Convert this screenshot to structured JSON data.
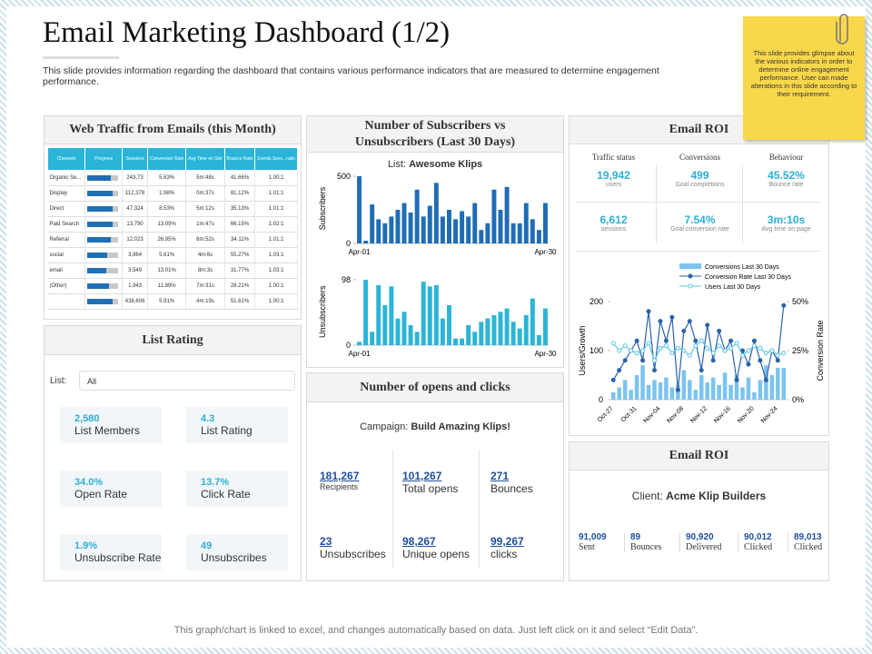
{
  "header": {
    "title": "Email Marketing Dashboard (1/2)",
    "description": "This slide provides information regarding the dashboard that contains various performance indicators that are measured to determine engagement performance."
  },
  "note": "This slide provides glimpse about the various indicators in order to determine online engagement performance. User can made alterations in this slide according to their requirement.",
  "footer": "This graph/chart is linked to excel, and changes automatically based on data. Just left click on it and select “Edit Data”.",
  "web_traffic": {
    "title": "Web Traffic from Emails (this Month)",
    "columns": [
      "Channels",
      "Progress",
      "Sessions",
      "Conversion Rate",
      "Avg Time on Site",
      "Bounce Rate",
      "Events Sess...ratio"
    ],
    "rows": [
      {
        "channel": "Organic Se...",
        "progress": 75,
        "sessions": "243,73",
        "conversion_rate": "5.63%",
        "avg_time": "5m:48s",
        "bounce_rate": "41.66%",
        "events_ratio": "1.00:1"
      },
      {
        "channel": "Display",
        "progress": 80,
        "sessions": "112,378",
        "conversion_rate": "1.98%",
        "avg_time": "0m:37s",
        "bounce_rate": "81.12%",
        "events_ratio": "1.01:1"
      },
      {
        "channel": "Direct",
        "progress": 80,
        "sessions": "47,324",
        "conversion_rate": "8.53%",
        "avg_time": "5m:12s",
        "bounce_rate": "35.13%",
        "events_ratio": "1.01:1"
      },
      {
        "channel": "Paid Search",
        "progress": 80,
        "sessions": "13,790",
        "conversion_rate": "13.09%",
        "avg_time": "1m:47s",
        "bounce_rate": "66.15%",
        "events_ratio": "1.02:1"
      },
      {
        "channel": "Referral",
        "progress": 75,
        "sessions": "12,023",
        "conversion_rate": "26.95%",
        "avg_time": "6m:52s",
        "bounce_rate": "34.11%",
        "events_ratio": "1.01:1"
      },
      {
        "channel": "social",
        "progress": 65,
        "sessions": "3,864",
        "conversion_rate": "5.61%",
        "avg_time": "4m:6s",
        "bounce_rate": "55.27%",
        "events_ratio": "1.03:1"
      },
      {
        "channel": "email",
        "progress": 60,
        "sessions": "3,549",
        "conversion_rate": "13.01%",
        "avg_time": "8m:3s",
        "bounce_rate": "31.77%",
        "events_ratio": "1.03:1"
      },
      {
        "channel": "(Other)",
        "progress": 70,
        "sessions": "1,943",
        "conversion_rate": "11.89%",
        "avg_time": "7m:31s",
        "bounce_rate": "28.21%",
        "events_ratio": "1.00:1"
      },
      {
        "progress": 80,
        "sessions": "438,606",
        "conversion_rate": "5.91%",
        "avg_time": "4m:19s",
        "bounce_rate": "51.61%",
        "events_ratio": "1.00:1"
      }
    ]
  },
  "list_rating": {
    "title": "List Rating",
    "list_label": "List:",
    "list_value": "All",
    "stats": [
      {
        "value": "2,580",
        "label": "List Members"
      },
      {
        "value": "4.3",
        "label": "List Rating"
      },
      {
        "value": "34.0%",
        "label": "Open Rate"
      },
      {
        "value": "13.7%",
        "label": "Click Rate"
      },
      {
        "value": "1.9%",
        "label": "Unsubscribe Rate"
      },
      {
        "value": "49",
        "label": "Unsubscribes"
      }
    ]
  },
  "subscribers": {
    "title": "Number of Subscribers vs Unsubscribers (Last 30 Days)",
    "list_label": "List:",
    "list_name": "Awesome Klips"
  },
  "opens_clicks": {
    "title": "Number of opens and clicks",
    "campaign_label": "Campaign:",
    "campaign": "Build Amazing Klips!",
    "metrics": [
      {
        "value": "181,267",
        "label": "Recipients"
      },
      {
        "value": "101,267",
        "label": "Total opens"
      },
      {
        "value": "271",
        "label": "Bounces"
      },
      {
        "value": "23",
        "label": "Unsubscribes"
      },
      {
        "value": "98,267",
        "label": "Unique opens"
      },
      {
        "value": "99,267",
        "label": "clicks"
      }
    ]
  },
  "email_roi_top": {
    "title": "Email ROI",
    "columns": [
      "Traffic status",
      "Conversions",
      "Behaviour"
    ],
    "metrics": [
      {
        "value": "19,942",
        "label": "users"
      },
      {
        "value": "499",
        "label": "Goal completions"
      },
      {
        "value": "45.52%",
        "label": "Bounce rate"
      },
      {
        "value": "6,612",
        "label": "sessions"
      },
      {
        "value": "7.54%",
        "label": "Goal conversion rate"
      },
      {
        "value": "3m:10s",
        "label": "Avg time on page"
      }
    ]
  },
  "email_roi_bottom": {
    "title": "Email ROI",
    "client_label": "Client:",
    "client": "Acme Klip Builders",
    "stats": [
      {
        "value": "91,009",
        "label": "Sent"
      },
      {
        "value": "89",
        "label": "Bounces"
      },
      {
        "value": "90,920",
        "label": "Delivered"
      },
      {
        "value": "90,012",
        "label": "Clicked"
      },
      {
        "value": "89,013",
        "label": "Clicked"
      }
    ]
  },
  "chart_data": [
    {
      "type": "bar",
      "ylabel": "Subscribers",
      "color": "#1f6db4",
      "ylim": [
        0,
        520
      ],
      "yticks": [
        0,
        500
      ],
      "categories": [
        "Apr-01",
        null,
        null,
        null,
        null,
        null,
        null,
        null,
        null,
        null,
        null,
        null,
        null,
        null,
        null,
        null,
        null,
        null,
        null,
        null,
        null,
        null,
        null,
        null,
        null,
        null,
        null,
        null,
        null,
        "Apr-30"
      ],
      "values": [
        500,
        20,
        290,
        180,
        150,
        200,
        250,
        300,
        230,
        400,
        200,
        280,
        450,
        200,
        250,
        180,
        240,
        200,
        300,
        100,
        150,
        400,
        250,
        420,
        150,
        150,
        300,
        180,
        100,
        300
      ]
    },
    {
      "type": "bar",
      "ylabel": "Unsubscribers",
      "color": "#2bb5d6",
      "ylim": [
        0,
        100
      ],
      "yticks": [
        0,
        98
      ],
      "categories": [
        "Apr-01",
        null,
        null,
        null,
        null,
        null,
        null,
        null,
        null,
        null,
        null,
        null,
        null,
        null,
        null,
        null,
        null,
        null,
        null,
        null,
        null,
        null,
        null,
        null,
        null,
        null,
        null,
        null,
        null,
        "Apr-30"
      ],
      "values": [
        5,
        98,
        20,
        90,
        60,
        88,
        40,
        50,
        30,
        20,
        95,
        88,
        90,
        40,
        60,
        10,
        10,
        30,
        20,
        35,
        40,
        45,
        50,
        55,
        35,
        25,
        45,
        70,
        15,
        55
      ]
    },
    {
      "type": "combo",
      "ylabel": "Users/Growth",
      "y2label": "Conversion Rate",
      "ylim": [
        0,
        200
      ],
      "yticks": [
        0,
        100,
        200
      ],
      "y2lim": [
        0,
        50
      ],
      "y2ticks": [
        {
          "value": 0,
          "label": "0%"
        },
        {
          "value": 25,
          "label": "25%"
        },
        {
          "value": 50,
          "label": "50%"
        }
      ],
      "categories": [
        "Oct-27",
        null,
        null,
        null,
        "Oct-31",
        null,
        null,
        null,
        "Nov-04",
        null,
        null,
        null,
        "Nov-08",
        null,
        null,
        null,
        "Nov-12",
        null,
        null,
        null,
        "Nov-16",
        null,
        null,
        null,
        "Nov-20",
        null,
        null,
        null,
        "Nov-24",
        null
      ],
      "series": [
        {
          "name": "Conversions Last 30 Days",
          "type": "bar",
          "color": "#7cc3ef",
          "values": [
            15,
            25,
            40,
            20,
            50,
            70,
            30,
            40,
            35,
            45,
            25,
            30,
            60,
            40,
            20,
            50,
            35,
            45,
            30,
            55,
            30,
            50,
            25,
            45,
            15,
            40,
            70,
            50,
            65,
            65
          ]
        },
        {
          "name": "Conversion Rate Last 30 Days",
          "type": "line",
          "axis": "y2",
          "color": "#2a63a8",
          "values": [
            10,
            15,
            20,
            25,
            30,
            20,
            45,
            15,
            40,
            30,
            42,
            5,
            35,
            40,
            30,
            15,
            38,
            20,
            35,
            25,
            30,
            10,
            25,
            18,
            30,
            20,
            10,
            25,
            20,
            48
          ]
        },
        {
          "name": "Users Last 30 Days",
          "type": "line",
          "color": "#5cc7e6",
          "values": [
            115,
            100,
            110,
            100,
            95,
            100,
            115,
            80,
            105,
            110,
            95,
            105,
            100,
            90,
            110,
            120,
            105,
            95,
            110,
            100,
            105,
            115,
            90,
            100,
            110,
            105,
            95,
            100,
            90,
            95
          ]
        }
      ]
    }
  ]
}
